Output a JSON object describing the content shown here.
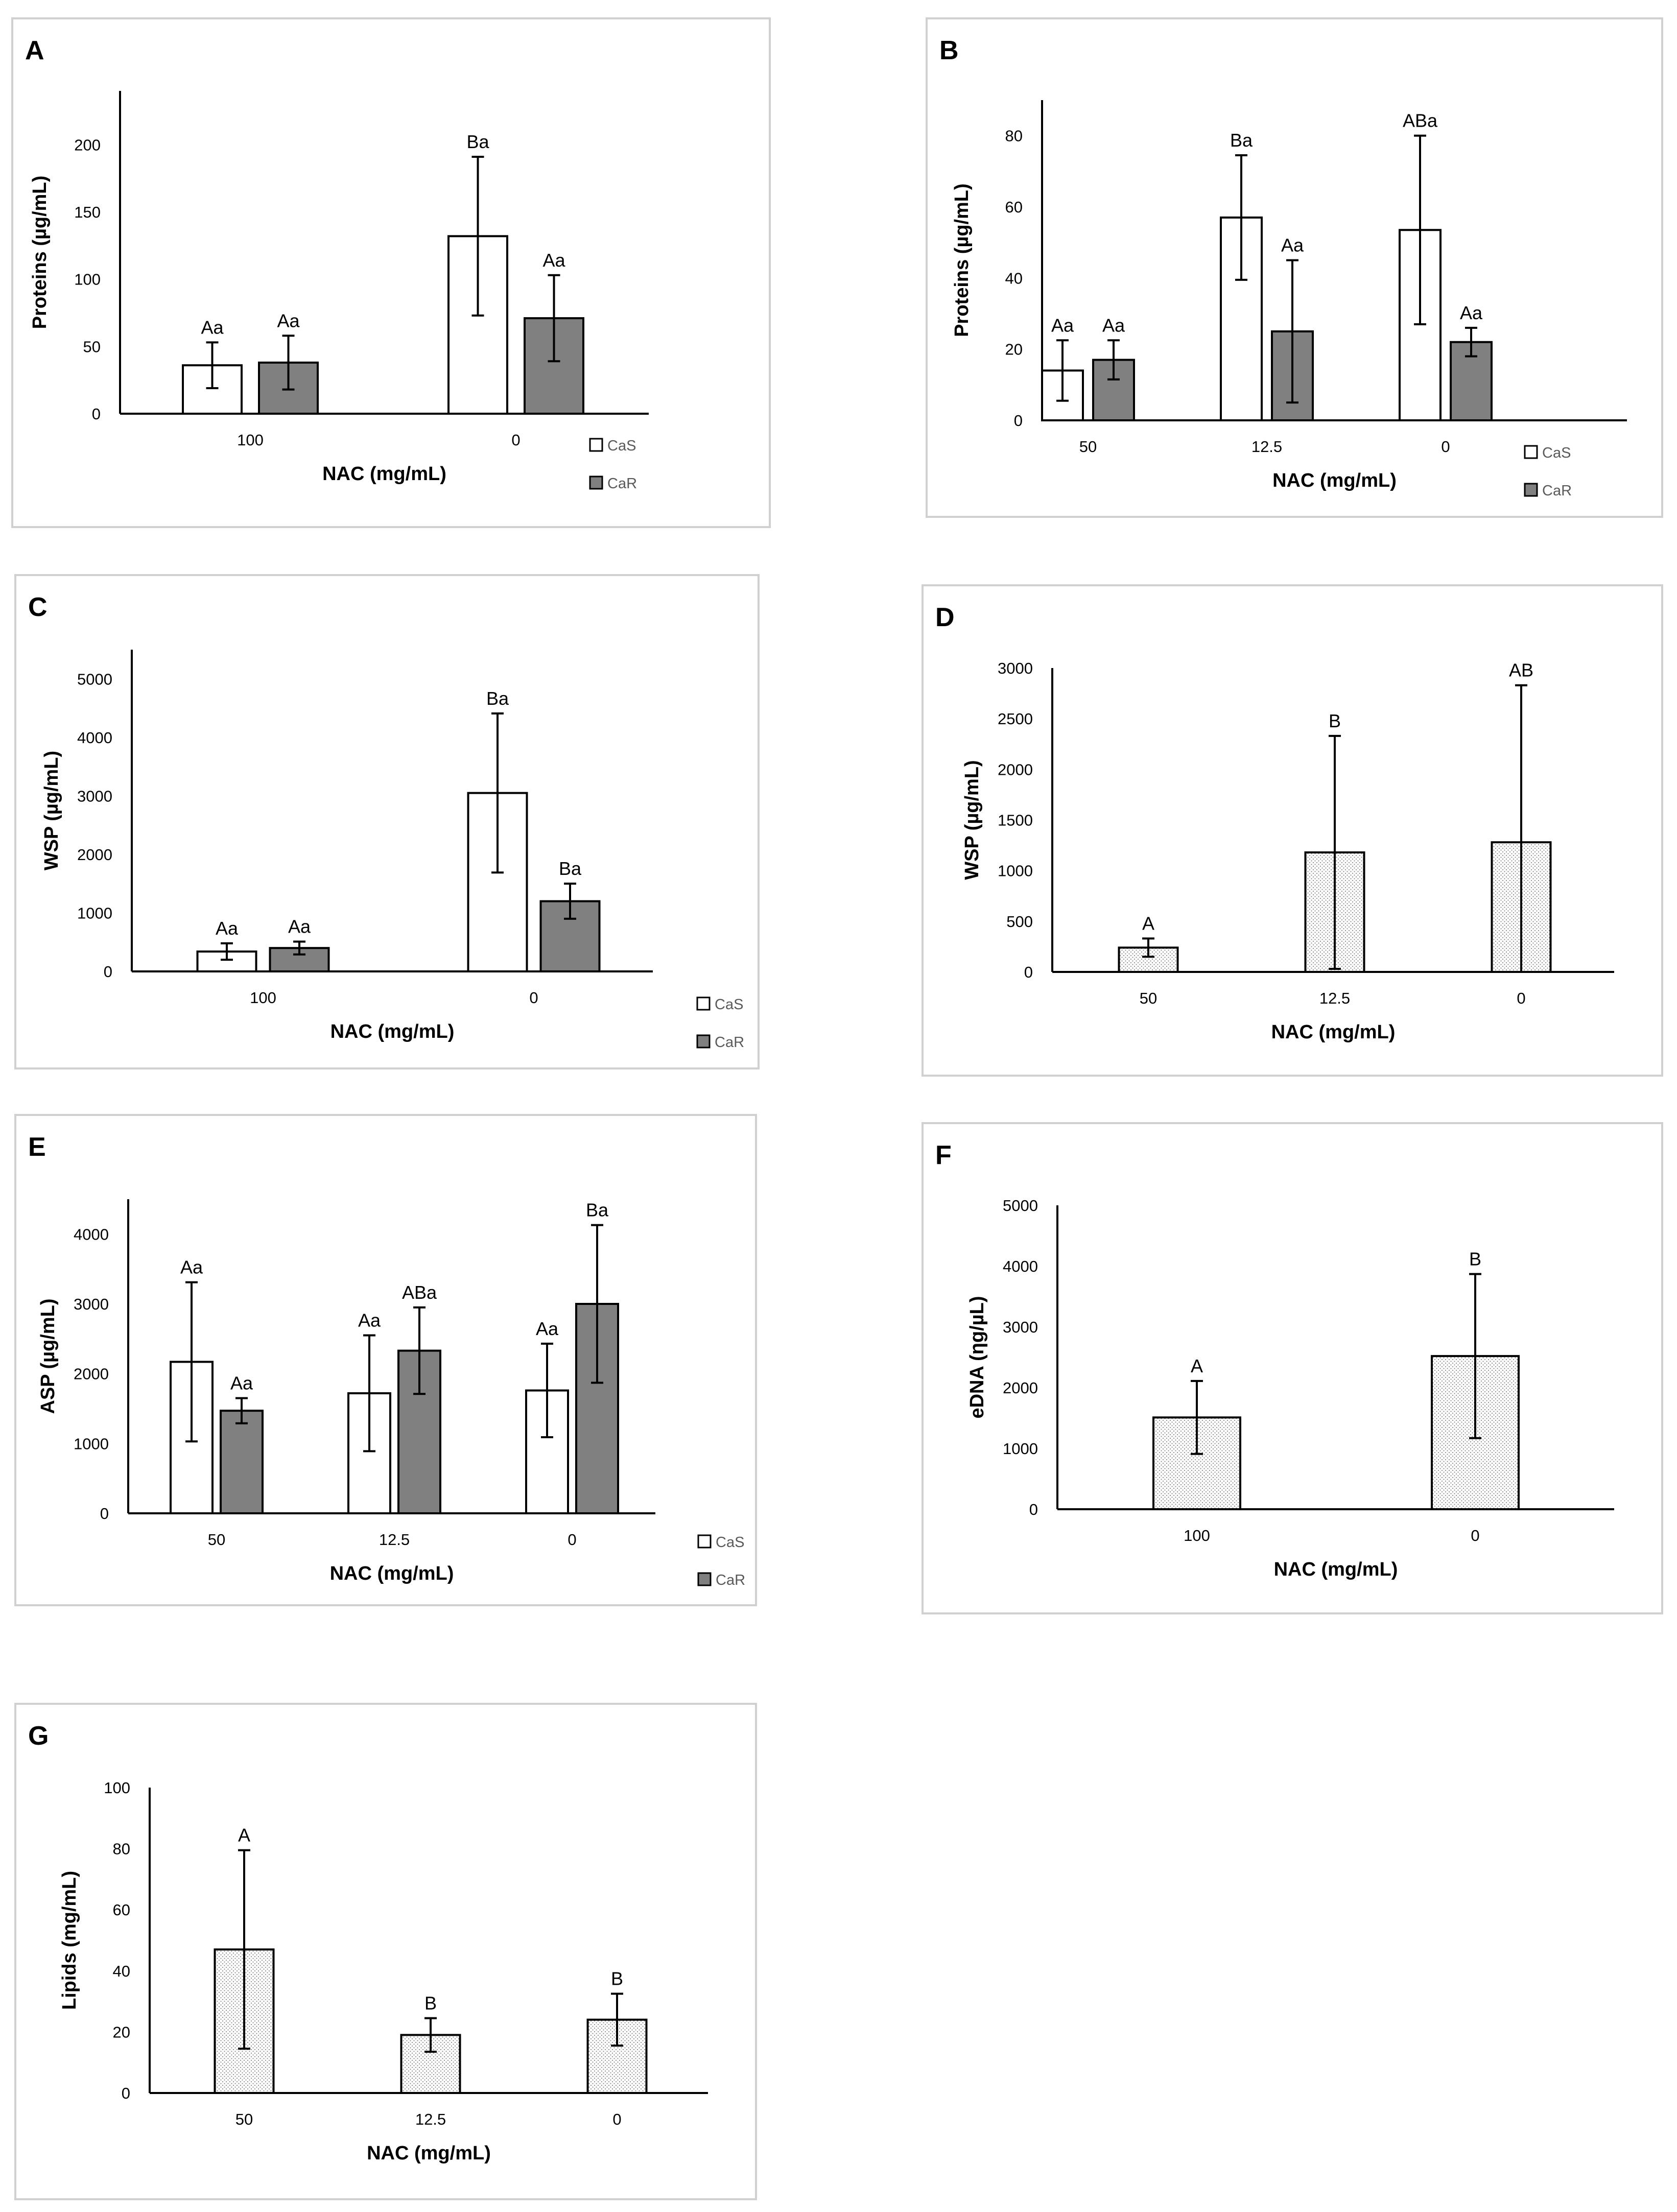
{
  "figure": {
    "colors": {
      "cas": "#ffffff",
      "car": "#808080",
      "single": "url(#dots)"
    },
    "legend": [
      "CaS",
      "CaR"
    ]
  },
  "chart_data": [
    {
      "id": "A",
      "type": "bar",
      "letter": "A",
      "ylabel": "Proteins  (µg/mL)",
      "xlabel": "NAC (mg/mL)",
      "ylim": [
        0,
        240
      ],
      "yticks": [
        0,
        50,
        100,
        150,
        200
      ],
      "categories": [
        "100",
        "0"
      ],
      "series": [
        {
          "name": "CaS",
          "values": [
            36,
            132
          ],
          "errors": [
            17,
            59
          ],
          "labels": [
            "Aa",
            "Ba"
          ]
        },
        {
          "name": "CaR",
          "values": [
            38,
            71
          ],
          "errors": [
            20,
            32
          ],
          "labels": [
            "Aa",
            "Aa"
          ]
        }
      ]
    },
    {
      "id": "B",
      "type": "bar",
      "letter": "B",
      "ylabel": "Proteins (µg/mL)",
      "xlabel": "NAC (mg/mL)",
      "ylim": [
        0,
        90
      ],
      "yticks": [
        0,
        20,
        40,
        60,
        80
      ],
      "categories": [
        "50",
        "12.5",
        "0"
      ],
      "series": [
        {
          "name": "CaS",
          "values": [
            14,
            57,
            53.5
          ],
          "errors": [
            8.5,
            17.5,
            26.5
          ],
          "labels": [
            "Aa",
            "Ba",
            "ABa"
          ]
        },
        {
          "name": "CaR",
          "values": [
            17,
            25,
            22
          ],
          "errors": [
            5.5,
            20,
            4
          ],
          "labels": [
            "Aa",
            "Aa",
            "Aa"
          ]
        }
      ]
    },
    {
      "id": "C",
      "type": "bar",
      "letter": "C",
      "ylabel": "WSP (µg/mL)",
      "xlabel": "NAC (mg/mL)",
      "ylim": [
        0,
        5500
      ],
      "yticks": [
        0,
        1000,
        2000,
        3000,
        4000,
        5000
      ],
      "categories": [
        "100",
        "0"
      ],
      "series": [
        {
          "name": "CaS",
          "values": [
            340,
            3050
          ],
          "errors": [
            140,
            1360
          ],
          "labels": [
            "Aa",
            "Ba"
          ]
        },
        {
          "name": "CaR",
          "values": [
            400,
            1200
          ],
          "errors": [
            110,
            300
          ],
          "labels": [
            "Aa",
            "Ba"
          ]
        }
      ]
    },
    {
      "id": "D",
      "type": "bar",
      "letter": "D",
      "ylabel": "WSP (µg/mL)",
      "xlabel": "NAC (mg/mL)",
      "ylim": [
        0,
        3000
      ],
      "yticks": [
        0,
        500,
        1000,
        1500,
        2000,
        2500,
        3000
      ],
      "categories": [
        "50",
        "12.5",
        "0"
      ],
      "series": [
        {
          "name": "single",
          "values": [
            240,
            1180,
            1280
          ],
          "errors": [
            90,
            1150,
            1550
          ],
          "labels": [
            "A",
            "B",
            "AB"
          ]
        }
      ]
    },
    {
      "id": "E",
      "type": "bar",
      "letter": "E",
      "ylabel": "ASP (µg/mL)",
      "xlabel": "NAC (mg/mL)",
      "ylim": [
        0,
        4500
      ],
      "yticks": [
        0,
        1000,
        2000,
        3000,
        4000
      ],
      "categories": [
        "50",
        "12.5",
        "0"
      ],
      "series": [
        {
          "name": "CaS",
          "values": [
            2170,
            1720,
            1760
          ],
          "errors": [
            1140,
            830,
            670
          ],
          "labels": [
            "Aa",
            "Aa",
            "Aa"
          ]
        },
        {
          "name": "CaR",
          "values": [
            1470,
            2330,
            3000
          ],
          "errors": [
            180,
            620,
            1130
          ],
          "labels": [
            "Aa",
            "ABa",
            "Ba"
          ]
        }
      ]
    },
    {
      "id": "F",
      "type": "bar",
      "letter": "F",
      "ylabel": "eDNA (ηg/µL)",
      "xlabel": "NAC (mg/mL)",
      "ylim": [
        0,
        5000
      ],
      "yticks": [
        0,
        1000,
        2000,
        3000,
        4000,
        5000
      ],
      "categories": [
        "100",
        "0"
      ],
      "series": [
        {
          "name": "single",
          "values": [
            1510,
            2520
          ],
          "errors": [
            600,
            1350
          ],
          "labels": [
            "A",
            "B"
          ]
        }
      ]
    },
    {
      "id": "G",
      "type": "bar",
      "letter": "G",
      "ylabel": "Lipids (mg/mL)",
      "xlabel": "NAC (mg/mL)",
      "ylim": [
        0,
        100
      ],
      "yticks": [
        0,
        20,
        40,
        60,
        80,
        100
      ],
      "categories": [
        "50",
        "12.5",
        "0"
      ],
      "series": [
        {
          "name": "single",
          "values": [
            47,
            19,
            24
          ],
          "errors": [
            32.5,
            5.5,
            8.5
          ],
          "labels": [
            "A",
            "B",
            "B"
          ]
        }
      ]
    }
  ]
}
